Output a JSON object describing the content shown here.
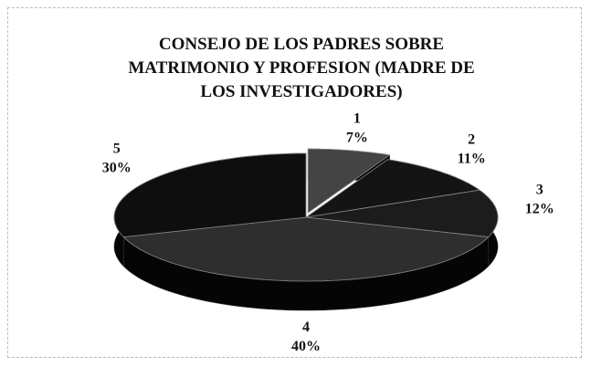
{
  "chart_data": {
    "type": "pie",
    "title": "CONSEJO DE LOS PADRES SOBRE MATRIMONIO Y PROFESION  (MADRE DE LOS INVESTIGADORES)",
    "categories": [
      "1",
      "2",
      "3",
      "4",
      "5"
    ],
    "values": [
      7,
      11,
      12,
      40,
      30
    ],
    "value_labels": [
      "7%",
      "11%",
      "12%",
      "40%",
      "30%"
    ],
    "colors": [
      "#444444",
      "#141414",
      "#1c1c1c",
      "#2e2e2e",
      "#0e0e0e"
    ]
  }
}
